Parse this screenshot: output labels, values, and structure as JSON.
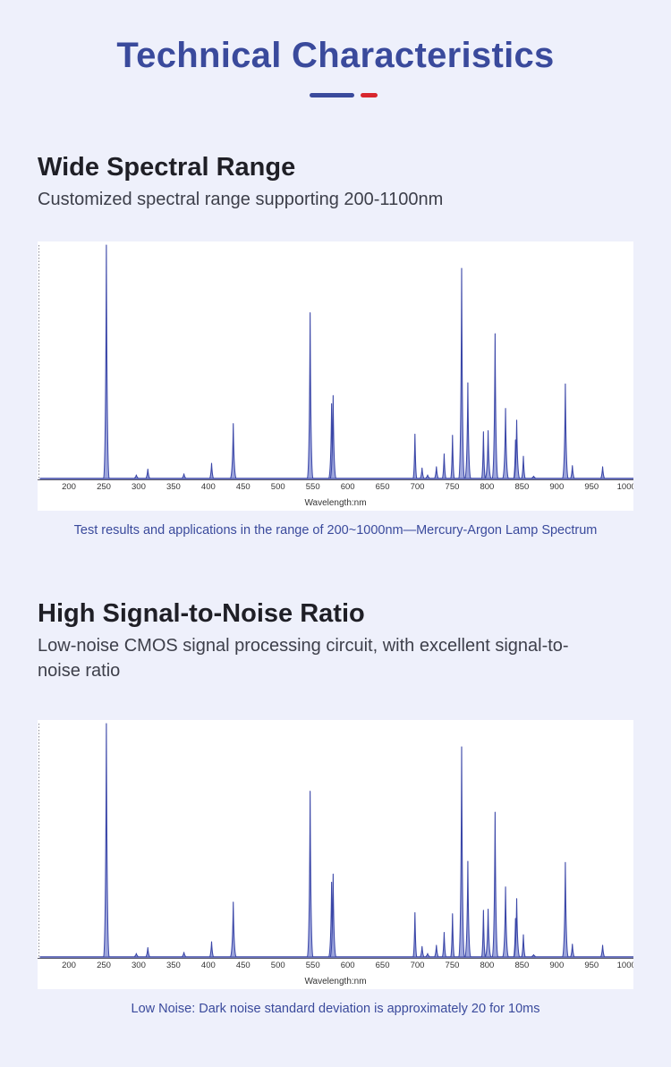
{
  "header": {
    "title": "Technical Characteristics"
  },
  "sections": [
    {
      "title": "Wide Spectral Range",
      "description": "Customized spectral range supporting 200-1100nm",
      "caption": "Test results and applications in the range of 200~1000nm—Mercury-Argon Lamp Spectrum"
    },
    {
      "title": "High Signal-to-Noise Ratio",
      "description": "Low-noise CMOS signal processing circuit, with excellent signal-to-noise ratio",
      "caption": "Low Noise: Dark noise standard deviation is approximately 20 for 10ms"
    }
  ],
  "colors": {
    "accent": "#3a4a9c",
    "accent_red": "#d8262d",
    "line": "#3b47a8",
    "background": "#eef0fb"
  },
  "chart_data": [
    {
      "type": "line",
      "title": "",
      "xlabel": "Wavelength:nm",
      "ylabel": "",
      "xlim": [
        155,
        1010
      ],
      "ylim": [
        0,
        100
      ],
      "x_ticks": [
        200,
        250,
        300,
        350,
        400,
        450,
        500,
        550,
        600,
        650,
        700,
        750,
        800,
        850,
        900,
        950,
        1000
      ],
      "grid": false,
      "series": [
        {
          "name": "Mercury-Argon Lamp Spectrum",
          "peaks": [
            {
              "x": 253.7,
              "y": 100
            },
            {
              "x": 296.7,
              "y": 1.5
            },
            {
              "x": 313.2,
              "y": 4
            },
            {
              "x": 365.0,
              "y": 2
            },
            {
              "x": 404.7,
              "y": 6.5
            },
            {
              "x": 435.8,
              "y": 23.5
            },
            {
              "x": 546.1,
              "y": 71
            },
            {
              "x": 576.9,
              "y": 32
            },
            {
              "x": 579.1,
              "y": 35.5
            },
            {
              "x": 696.5,
              "y": 19
            },
            {
              "x": 706.7,
              "y": 4.5
            },
            {
              "x": 714.7,
              "y": 1.5
            },
            {
              "x": 727.3,
              "y": 5
            },
            {
              "x": 738.4,
              "y": 10.5
            },
            {
              "x": 750.4,
              "y": 18.5
            },
            {
              "x": 763.5,
              "y": 90
            },
            {
              "x": 772.4,
              "y": 41
            },
            {
              "x": 794.8,
              "y": 20
            },
            {
              "x": 801.5,
              "y": 20.5
            },
            {
              "x": 811.5,
              "y": 62
            },
            {
              "x": 826.5,
              "y": 30
            },
            {
              "x": 840.8,
              "y": 16.5
            },
            {
              "x": 842.5,
              "y": 25
            },
            {
              "x": 852.1,
              "y": 9.5
            },
            {
              "x": 866.8,
              "y": 1
            },
            {
              "x": 912.3,
              "y": 40.5
            },
            {
              "x": 922.4,
              "y": 5.5
            },
            {
              "x": 965.8,
              "y": 5
            }
          ]
        }
      ]
    },
    {
      "type": "line",
      "title": "",
      "xlabel": "Wavelength:nm",
      "ylabel": "",
      "xlim": [
        155,
        1010
      ],
      "ylim": [
        0,
        100
      ],
      "x_ticks": [
        200,
        250,
        300,
        350,
        400,
        450,
        500,
        550,
        600,
        650,
        700,
        750,
        800,
        850,
        900,
        950,
        1000
      ],
      "grid": false,
      "series": [
        {
          "name": "Mercury-Argon Lamp Spectrum",
          "peaks": [
            {
              "x": 253.7,
              "y": 100
            },
            {
              "x": 296.7,
              "y": 1.5
            },
            {
              "x": 313.2,
              "y": 4
            },
            {
              "x": 365.0,
              "y": 2
            },
            {
              "x": 404.7,
              "y": 6.5
            },
            {
              "x": 435.8,
              "y": 23.5
            },
            {
              "x": 546.1,
              "y": 71
            },
            {
              "x": 576.9,
              "y": 32
            },
            {
              "x": 579.1,
              "y": 35.5
            },
            {
              "x": 696.5,
              "y": 19
            },
            {
              "x": 706.7,
              "y": 4.5
            },
            {
              "x": 714.7,
              "y": 1.5
            },
            {
              "x": 727.3,
              "y": 5
            },
            {
              "x": 738.4,
              "y": 10.5
            },
            {
              "x": 750.4,
              "y": 18.5
            },
            {
              "x": 763.5,
              "y": 90
            },
            {
              "x": 772.4,
              "y": 41
            },
            {
              "x": 794.8,
              "y": 20
            },
            {
              "x": 801.5,
              "y": 20.5
            },
            {
              "x": 811.5,
              "y": 62
            },
            {
              "x": 826.5,
              "y": 30
            },
            {
              "x": 840.8,
              "y": 16.5
            },
            {
              "x": 842.5,
              "y": 25
            },
            {
              "x": 852.1,
              "y": 9.5
            },
            {
              "x": 866.8,
              "y": 1
            },
            {
              "x": 912.3,
              "y": 40.5
            },
            {
              "x": 922.4,
              "y": 5.5
            },
            {
              "x": 965.8,
              "y": 5
            }
          ]
        }
      ]
    }
  ]
}
